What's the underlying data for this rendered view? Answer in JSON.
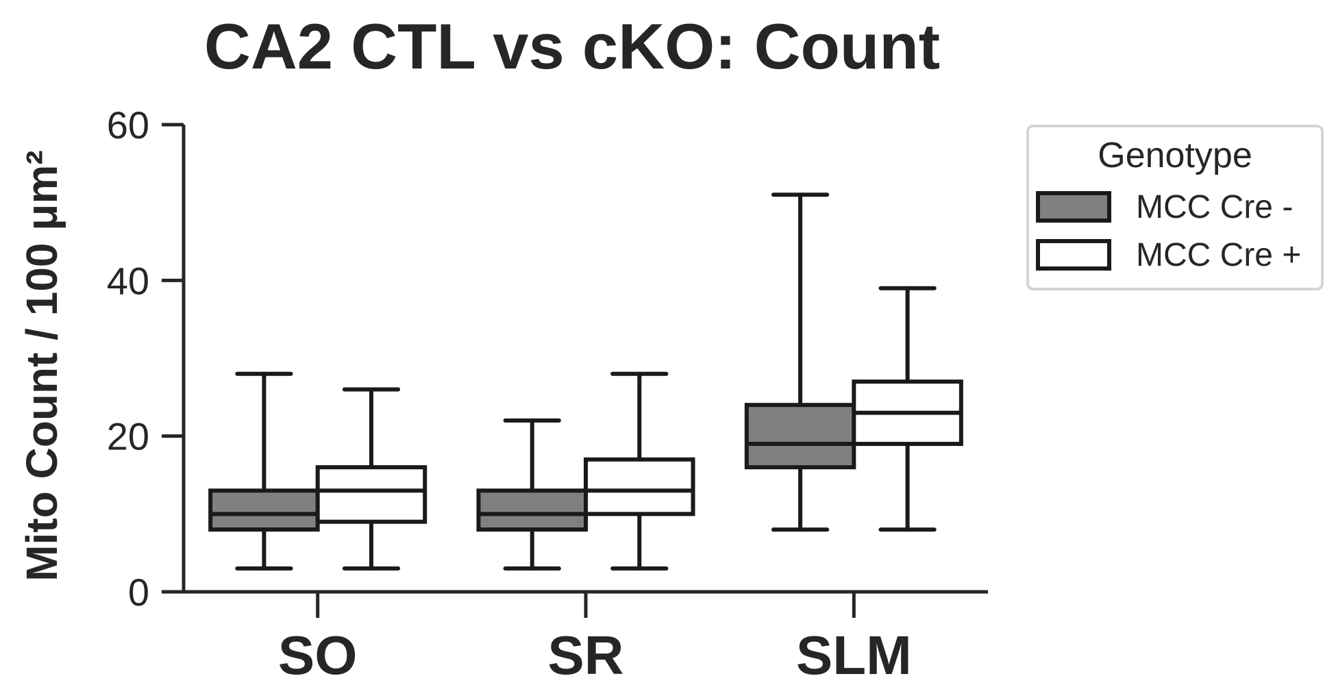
{
  "chart_data": {
    "type": "box",
    "title": "CA2 CTL vs cKO: Count",
    "ylabel": "Mito Count / 100 μm²",
    "xlabel": "",
    "ylim": [
      0,
      60
    ],
    "yticks": [
      0,
      20,
      40,
      60
    ],
    "categories": [
      "SO",
      "SR",
      "SLM"
    ],
    "legend": {
      "title": "Genotype",
      "placement": "outside-right-top"
    },
    "series": [
      {
        "name": "MCC Cre -",
        "color": "#808080",
        "boxes": [
          {
            "category": "SO",
            "whisker_low": 3,
            "q1": 8,
            "median": 10,
            "q3": 13,
            "whisker_high": 28
          },
          {
            "category": "SR",
            "whisker_low": 3,
            "q1": 8,
            "median": 10,
            "q3": 13,
            "whisker_high": 22
          },
          {
            "category": "SLM",
            "whisker_low": 8,
            "q1": 16,
            "median": 19,
            "q3": 24,
            "whisker_high": 51
          }
        ]
      },
      {
        "name": "MCC Cre +",
        "color": "#ffffff",
        "boxes": [
          {
            "category": "SO",
            "whisker_low": 3,
            "q1": 9,
            "median": 13,
            "q3": 16,
            "whisker_high": 26
          },
          {
            "category": "SR",
            "whisker_low": 3,
            "q1": 10,
            "median": 13,
            "q3": 17,
            "whisker_high": 28
          },
          {
            "category": "SLM",
            "whisker_low": 8,
            "q1": 19,
            "median": 23,
            "q3": 27,
            "whisker_high": 39
          }
        ]
      }
    ],
    "edge_color": "#1a1a1a",
    "text_color": "#262626"
  }
}
